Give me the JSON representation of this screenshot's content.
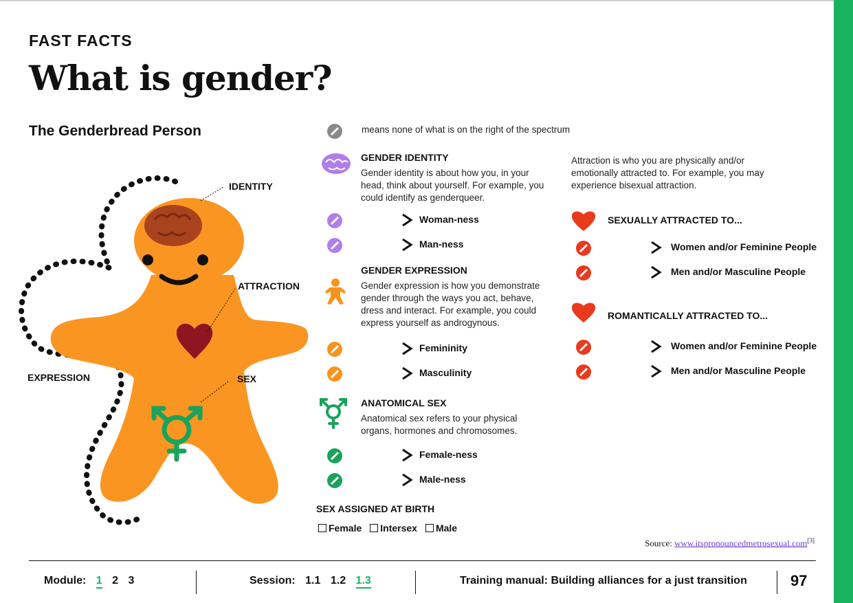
{
  "header": {
    "kicker": "FAST FACTS",
    "title": "What is gender?",
    "subtitle": "The Genderbread Person"
  },
  "figure": {
    "label_identity": "IDENTITY",
    "label_attraction": "ATTRACTION",
    "label_sex": "SEX",
    "label_expression": "EXPRESSION"
  },
  "legend": {
    "text": "means none of what is on the right of the spectrum"
  },
  "gender_identity": {
    "heading": "GENDER IDENTITY",
    "description": "Gender identity is about how you, in your head, think about yourself. For example, you could identify as genderqueer.",
    "rows": [
      "Woman-ness",
      "Man-ness"
    ]
  },
  "gender_expression": {
    "heading": "GENDER EXPRESSION",
    "description": "Gender expression is how you demonstrate gender through the ways you act, behave, dress and interact. For example, you could express yourself as androgynous.",
    "rows": [
      "Femininity",
      "Masculinity"
    ]
  },
  "anatomical_sex": {
    "heading": "ANATOMICAL SEX",
    "description": "Anatomical sex refers to your physical organs, hormones and chromosomes.",
    "rows": [
      "Female-ness",
      "Male-ness"
    ]
  },
  "sex_assigned": {
    "heading": "SEX ASSIGNED AT BIRTH",
    "options": [
      "Female",
      "Intersex",
      "Male"
    ]
  },
  "attraction": {
    "description": "Attraction is who you are physically and/or emotionally attracted to. For example, you may experience bisexual attraction.",
    "sexual_heading": "SEXUALLY ATTRACTED TO...",
    "sexual_rows": [
      "Women and/or Feminine People",
      "Men and/or Masculine People"
    ],
    "romantic_heading": "ROMANTICALLY ATTRACTED TO...",
    "romantic_rows": [
      "Women and/or Feminine People",
      "Men and/or Masculine People"
    ]
  },
  "source": {
    "label": "Source:",
    "link": "www.itspronouncedmetrosexual.com",
    "ref": "[3]"
  },
  "footer": {
    "module_label": "Module:",
    "modules": [
      "1",
      "2",
      "3"
    ],
    "active_module": "1",
    "session_label": "Session:",
    "sessions": [
      "1.1",
      "1.2",
      "1.3"
    ],
    "active_session": "1.3",
    "manual_title": "Training manual: Building alliances for a just transition",
    "page_number": "97"
  },
  "colors": {
    "accent_green": "#19b35e",
    "identity_purple": "#b07ee8",
    "expression_orange": "#f7941d",
    "sex_green": "#1aa35a",
    "attraction_red": "#ea3a1e",
    "body_orange": "#fb9522"
  }
}
